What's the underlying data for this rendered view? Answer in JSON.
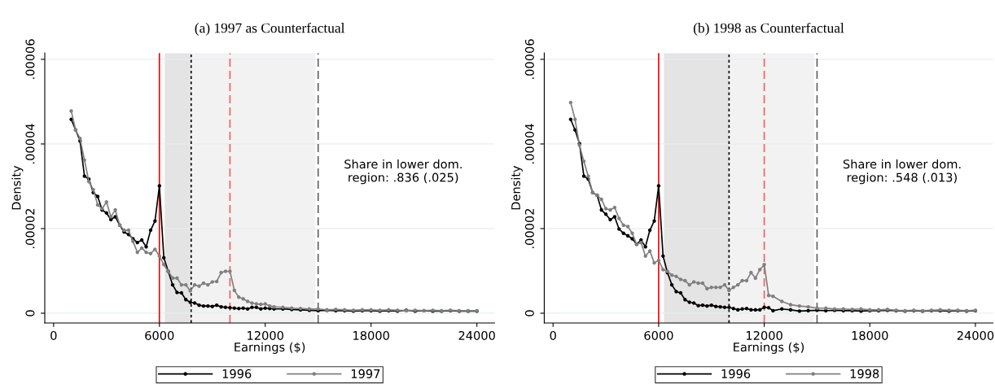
{
  "chart_data": [
    {
      "type": "line",
      "title": "(a) 1997 as Counterfactual",
      "xlabel": "Earnings ($)",
      "ylabel": "Density",
      "x": [
        1000,
        1250,
        1500,
        1750,
        2000,
        2250,
        2500,
        2750,
        3000,
        3250,
        3500,
        3750,
        4000,
        4250,
        4500,
        4750,
        5000,
        5250,
        5500,
        5750,
        6000,
        6250,
        6500,
        6750,
        7000,
        7250,
        7500,
        7750,
        8000,
        8250,
        8500,
        8750,
        9000,
        9250,
        9500,
        9750,
        10000,
        10250,
        10500,
        10750,
        11000,
        11250,
        11500,
        11750,
        12000,
        12250,
        12500,
        13000,
        13500,
        14000,
        14500,
        15000,
        15500,
        16000,
        16500,
        17000,
        17500,
        18000,
        18500,
        19000,
        19500,
        20000,
        20500,
        21000,
        21500,
        22000,
        22500,
        23000,
        23500,
        24000
      ],
      "series": [
        {
          "name": "1996",
          "color": "#000000",
          "values": [
            4.58e-05,
            4.33e-05,
            4.07e-05,
            3.24e-05,
            3.17e-05,
            2.85e-05,
            2.76e-05,
            2.44e-05,
            2.37e-05,
            2.21e-05,
            2.28e-05,
            2.08e-05,
            1.92e-05,
            1.86e-05,
            1.76e-05,
            1.67e-05,
            1.73e-05,
            1.57e-05,
            1.96e-05,
            2.18e-05,
            3.01e-05,
            1.31e-05,
            9.9e-06,
            6.7e-06,
            4.9e-06,
            4.8e-06,
            3.2e-06,
            2.6e-06,
            2.4e-06,
            1.9e-06,
            1.7e-06,
            1.7e-06,
            1.6e-06,
            1.9e-06,
            1.5e-06,
            1.4e-06,
            1.3e-06,
            1.2e-06,
            1.1e-06,
            1.2e-06,
            1e-06,
            1.4e-06,
            1.4e-06,
            1e-06,
            1.2e-06,
            1.1e-06,
            1e-06,
            1e-06,
            9e-07,
            8e-07,
            7e-07,
            6e-07,
            7e-07,
            6e-07,
            6e-07,
            5e-07,
            6e-07,
            6e-07,
            5e-07,
            6e-07,
            5e-07,
            7e-07,
            5e-07,
            6e-07,
            5e-07,
            5e-07,
            6e-07,
            5e-07,
            5e-07,
            5e-07
          ]
        },
        {
          "name": "1997",
          "color": "#808080",
          "values": [
            4.78e-05,
            4.33e-05,
            4.13e-05,
            3.62e-05,
            3.11e-05,
            2.92e-05,
            2.56e-05,
            2.47e-05,
            2.63e-05,
            2.28e-05,
            2.44e-05,
            2.08e-05,
            1.96e-05,
            1.96e-05,
            1.7e-05,
            1.44e-05,
            1.54e-05,
            1.44e-05,
            1.41e-05,
            1.51e-05,
            1.35e-05,
            1.15e-05,
            9.9e-06,
            8.3e-06,
            8.3e-06,
            6.7e-06,
            6.7e-06,
            5.3e-06,
            6.7e-06,
            6.4e-06,
            7.1e-06,
            6.7e-06,
            7.4e-06,
            7.5e-06,
            9.6e-06,
            9.9e-06,
            9.9e-06,
            5.4e-06,
            3.8e-06,
            3.4e-06,
            2.8e-06,
            2.4e-06,
            2.2e-06,
            2.1e-06,
            2.2e-06,
            1.7e-06,
            1.5e-06,
            1.4e-06,
            1.2e-06,
            1.1e-06,
            1e-06,
            1e-06,
            8e-07,
            9e-07,
            8e-07,
            7e-07,
            8e-07,
            8e-07,
            7e-07,
            8e-07,
            7e-07,
            6e-07,
            7e-07,
            6e-07,
            7e-07,
            6e-07,
            7e-07,
            6e-07,
            6e-07,
            6e-07
          ]
        }
      ],
      "xlim": [
        -500,
        25000
      ],
      "ylim": [
        -2.3e-06,
        6.15e-05
      ],
      "xticks": [
        0,
        6000,
        12000,
        18000,
        24000
      ],
      "yticks": [
        0,
        {
          "value": 2e-05,
          "label": ".00002"
        },
        {
          "value": 4e-05,
          "label": ".00004"
        },
        {
          "value": 6e-05,
          "label": ".00006"
        }
      ],
      "bands": [
        {
          "axis": "x",
          "from": 6300,
          "to": 7800,
          "color": "#e4e4e4"
        },
        {
          "axis": "x",
          "from": 7800,
          "to": 14850,
          "color": "#f2f2f2"
        }
      ],
      "ref_lines": [
        {
          "axis": "x",
          "value": 6000,
          "color": "#ff0000",
          "line_style": "solid"
        },
        {
          "axis": "x",
          "value": 7800,
          "color": "#000000",
          "line_style": "dotted"
        },
        {
          "axis": "x",
          "value": 10000,
          "color": "#f06060",
          "line_style": "dashed"
        },
        {
          "axis": "x",
          "value": 15000,
          "color": "#606060",
          "line_style": "dashed"
        }
      ],
      "annotations": [
        "Share in lower dom.\n region: .836 (.025)"
      ],
      "grid": "y",
      "legend": "bottom",
      "marker": "circle",
      "line_style": "solid"
    },
    {
      "type": "line",
      "title": "(b) 1998 as Counterfactual",
      "xlabel": "Earnings ($)",
      "ylabel": "Density",
      "x": [
        1000,
        1250,
        1500,
        1750,
        2000,
        2250,
        2500,
        2750,
        3000,
        3250,
        3500,
        3750,
        4000,
        4250,
        4500,
        4750,
        5000,
        5250,
        5500,
        5750,
        6000,
        6250,
        6500,
        6750,
        7000,
        7250,
        7500,
        7750,
        8000,
        8250,
        8500,
        8750,
        9000,
        9250,
        9500,
        9750,
        10000,
        10250,
        10500,
        10750,
        11000,
        11250,
        11500,
        11750,
        12000,
        12250,
        12500,
        13000,
        13500,
        14000,
        14500,
        15000,
        15500,
        16000,
        16500,
        17000,
        17500,
        18000,
        18500,
        19000,
        19500,
        20000,
        20500,
        21000,
        21500,
        22000,
        22500,
        23000,
        23500,
        24000
      ],
      "series": [
        {
          "name": "1996",
          "color": "#000000",
          "values": [
            4.58e-05,
            4.33e-05,
            4.01e-05,
            3.24e-05,
            3.17e-05,
            2.85e-05,
            2.79e-05,
            2.44e-05,
            2.34e-05,
            2.21e-05,
            2.28e-05,
            1.99e-05,
            1.89e-05,
            1.83e-05,
            1.76e-05,
            1.63e-05,
            1.73e-05,
            1.57e-05,
            1.96e-05,
            2.18e-05,
            3.01e-05,
            1.35e-05,
            9.6e-06,
            6.7e-06,
            5.1e-06,
            4.8e-06,
            3.2e-06,
            2.6e-06,
            2.4e-06,
            1.8e-06,
            1.9e-06,
            1.7e-06,
            1.9e-06,
            1.6e-06,
            1.5e-06,
            1.4e-06,
            1.4e-06,
            1.1e-06,
            8e-07,
            1e-06,
            1.1e-06,
            8e-07,
            8e-07,
            8e-07,
            1.4e-06,
            1.3e-06,
            6e-07,
            1e-06,
            8e-07,
            5e-07,
            6e-07,
            7e-07,
            6e-07,
            7e-07,
            6e-07,
            6e-07,
            5e-07,
            6e-07,
            6e-07,
            7e-07,
            6e-07,
            5e-07,
            6e-07,
            5e-07,
            6e-07,
            6e-07,
            5e-07,
            6e-07,
            5e-07,
            6e-07
          ]
        },
        {
          "name": "1998",
          "color": "#808080",
          "values": [
            4.98e-05,
            4.58e-05,
            3.97e-05,
            3.59e-05,
            3.24e-05,
            2.85e-05,
            2.79e-05,
            2.69e-05,
            2.47e-05,
            2.44e-05,
            2.5e-05,
            2.24e-05,
            2.08e-05,
            2.05e-05,
            1.89e-05,
            1.63e-05,
            1.67e-05,
            1.35e-05,
            1.47e-05,
            1.19e-05,
            1.25e-05,
            1.03e-05,
            9.9e-06,
            9e-06,
            8.7e-06,
            8e-06,
            7.7e-06,
            6.7e-06,
            7.4e-06,
            7.1e-06,
            7.1e-06,
            5.8e-06,
            6.1e-06,
            6.1e-06,
            6.1e-06,
            6.7e-06,
            5.4e-06,
            6.1e-06,
            6.7e-06,
            7.7e-06,
            7.7e-06,
            9.6e-06,
            8.3e-06,
            1.03e-05,
            1.15e-05,
            4.2e-06,
            4e-06,
            2.8e-06,
            2e-06,
            1.7e-06,
            1.5e-06,
            1.2e-06,
            1.2e-06,
            1e-06,
            1e-06,
            9e-07,
            1e-06,
            8e-07,
            8e-07,
            9e-07,
            7e-07,
            6e-07,
            7e-07,
            6e-07,
            7e-07,
            8e-07,
            7e-07,
            7e-07,
            6e-07,
            7e-07
          ]
        }
      ],
      "xlim": [
        -500,
        25000
      ],
      "ylim": [
        -2.3e-06,
        6.15e-05
      ],
      "xticks": [
        0,
        6000,
        12000,
        18000,
        24000
      ],
      "yticks": [
        0,
        {
          "value": 2e-05,
          "label": ".00002"
        },
        {
          "value": 4e-05,
          "label": ".00004"
        },
        {
          "value": 6e-05,
          "label": ".00006"
        }
      ],
      "bands": [
        {
          "axis": "x",
          "from": 6300,
          "to": 10000,
          "color": "#e4e4e4"
        },
        {
          "axis": "x",
          "from": 10000,
          "to": 14850,
          "color": "#f2f2f2"
        }
      ],
      "ref_lines": [
        {
          "axis": "x",
          "value": 6000,
          "color": "#ff0000",
          "line_style": "solid"
        },
        {
          "axis": "x",
          "value": 10000,
          "color": "#000000",
          "line_style": "dotted"
        },
        {
          "axis": "x",
          "value": 12000,
          "color": "#f06060",
          "line_style": "dashed"
        },
        {
          "axis": "x",
          "value": 15000,
          "color": "#606060",
          "line_style": "dashed"
        }
      ],
      "annotations": [
        "Share in lower dom.\n region: .548 (.013)"
      ],
      "grid": "y",
      "legend": "bottom",
      "marker": "circle",
      "line_style": "solid"
    }
  ]
}
